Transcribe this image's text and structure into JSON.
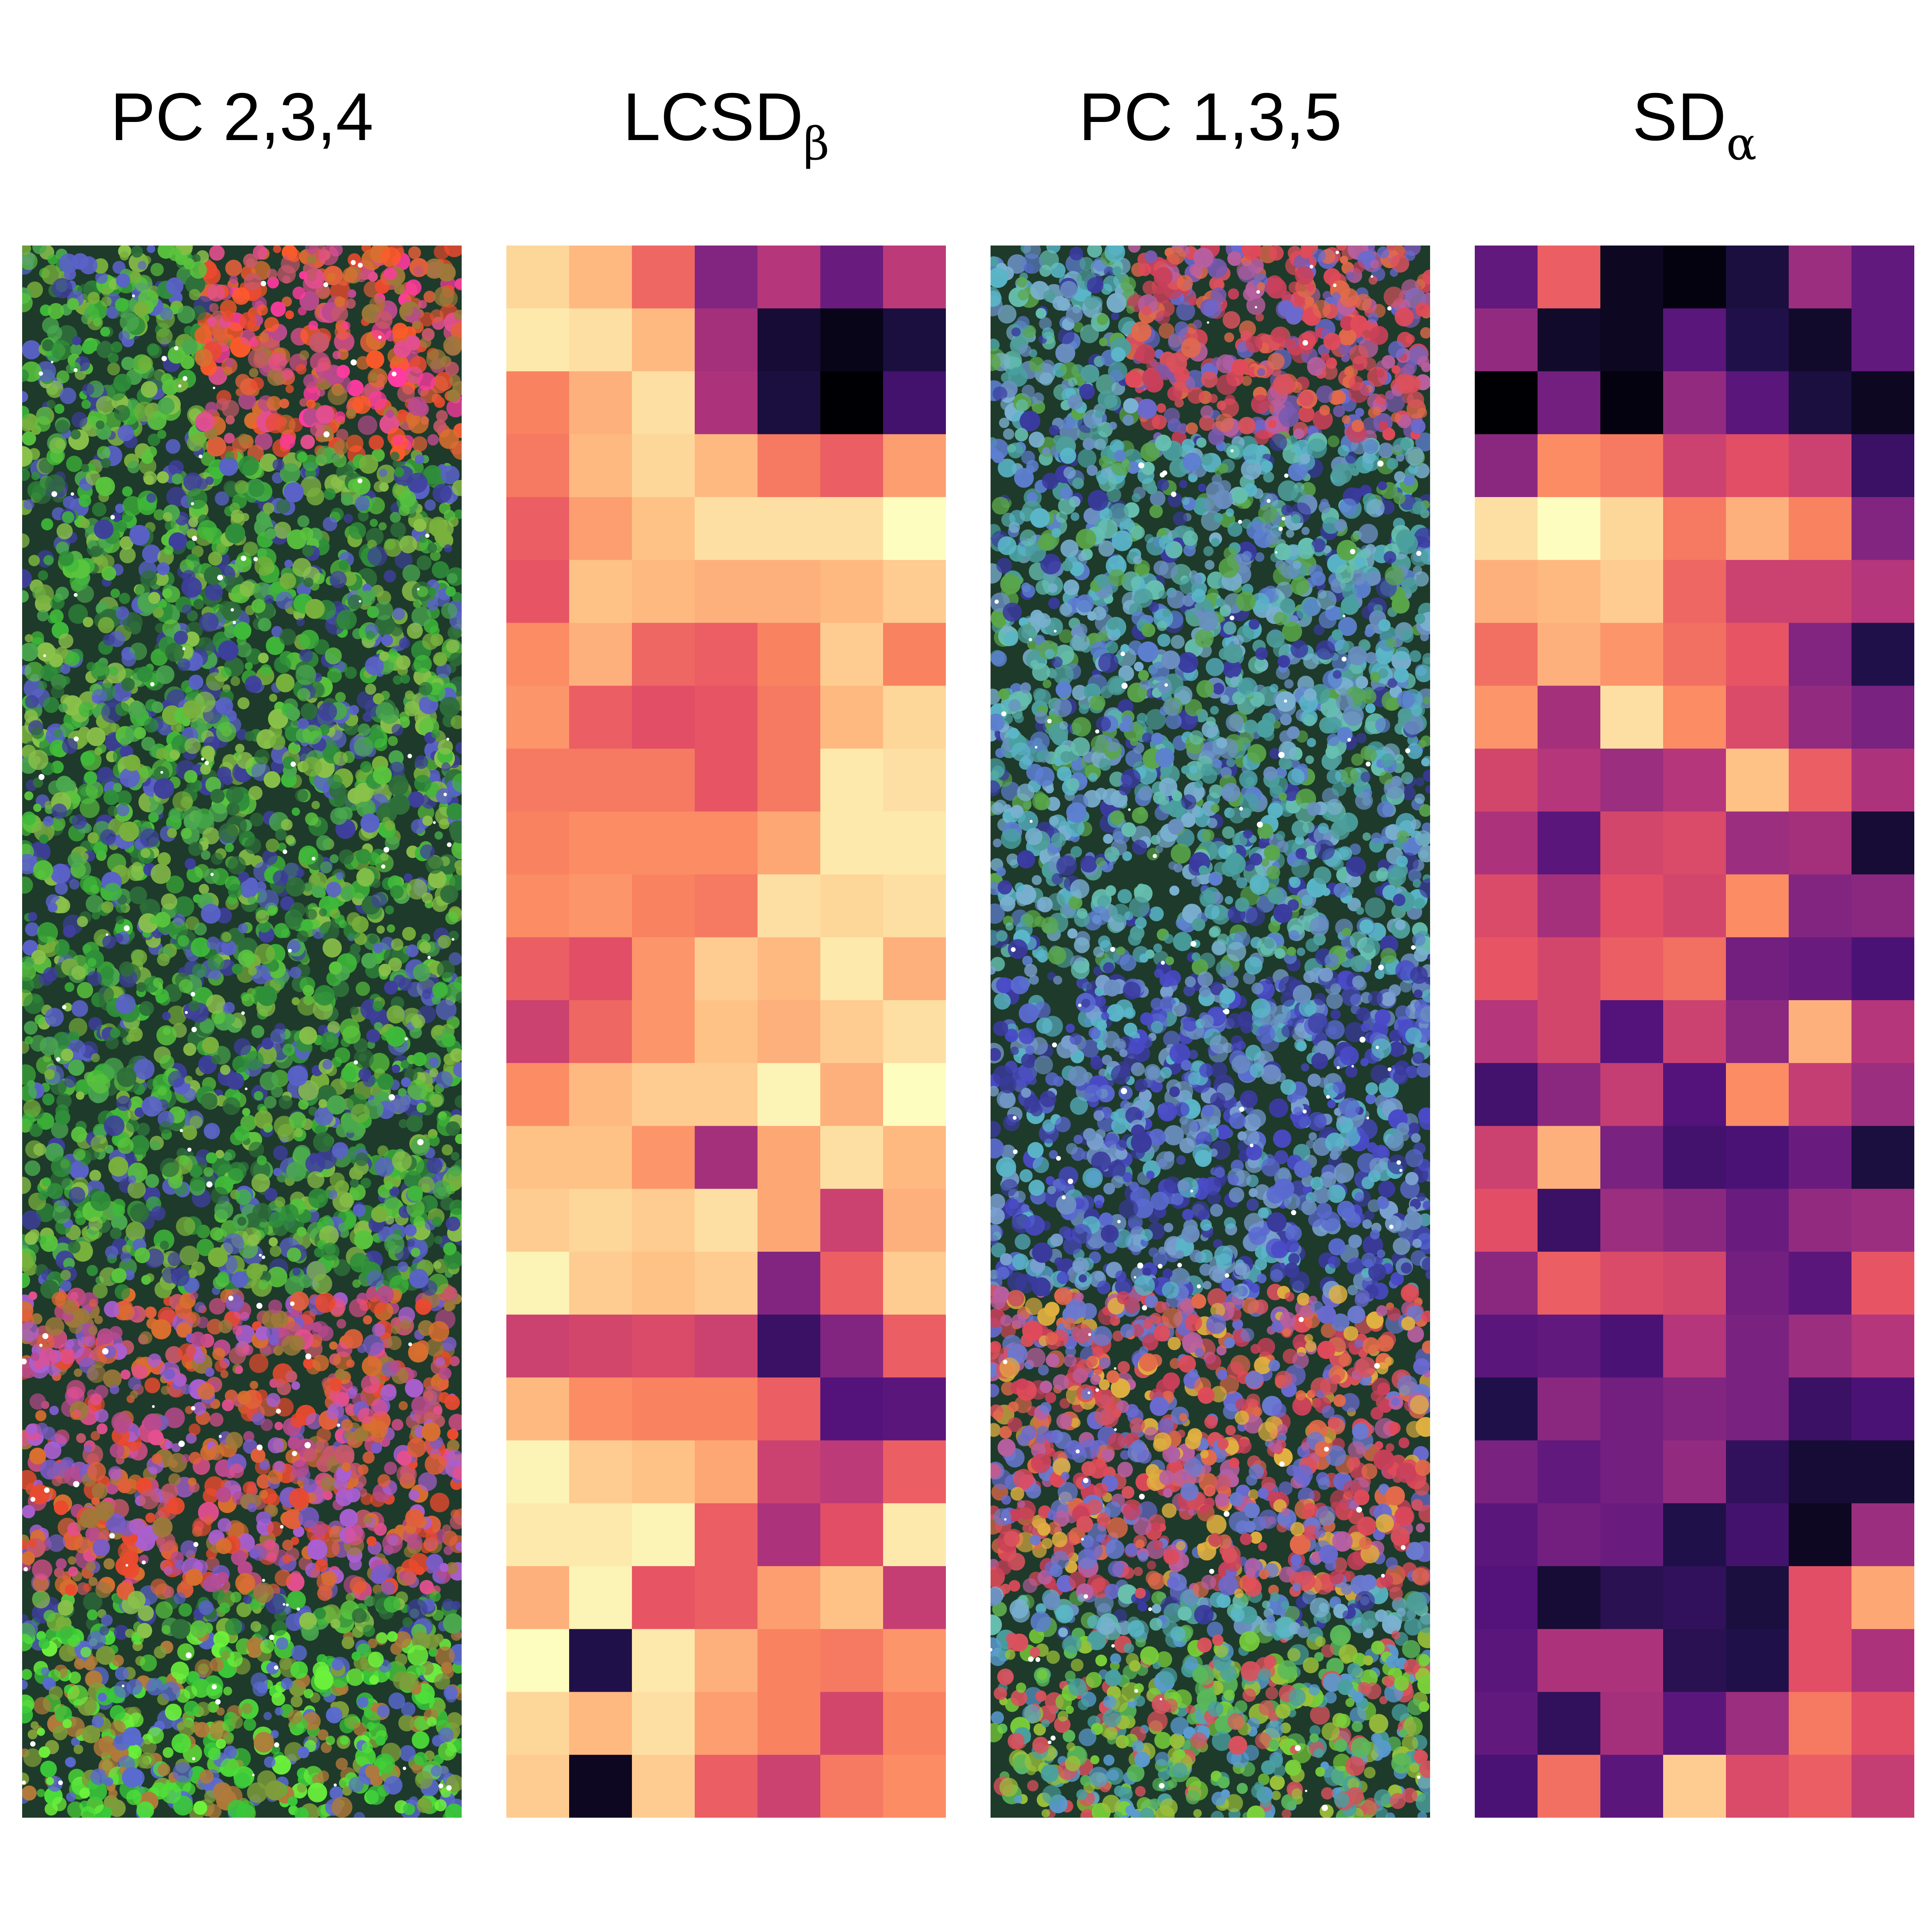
{
  "panels": [
    {
      "id": "pc234",
      "label": "PC 2,3,4",
      "sub": "",
      "type": "rgb-composite",
      "tint": [
        "#3fb93a",
        "#6e9c3a",
        "#e06a3a",
        "#c9588f",
        "#6c6bd0",
        "#2d8d5d"
      ]
    },
    {
      "id": "lcsd",
      "label": "LCSD",
      "sub": "β",
      "type": "grid",
      "colormap": "magma"
    },
    {
      "id": "pc135",
      "label": "PC 1,3,5",
      "sub": "",
      "type": "rgb-composite",
      "tint": [
        "#5aa6b6",
        "#4e8d8f",
        "#6d6cd0",
        "#d9525d",
        "#7aa74a",
        "#8a8fb0"
      ]
    },
    {
      "id": "sd",
      "label": "SD",
      "sub": "α",
      "type": "grid",
      "colormap": "magma"
    }
  ],
  "grids": {
    "lcsd": [
      [
        0.92,
        0.86,
        0.68,
        0.38,
        0.5,
        0.32,
        0.52
      ],
      [
        0.96,
        0.94,
        0.86,
        0.46,
        0.1,
        0.04,
        0.12
      ],
      [
        0.74,
        0.84,
        0.94,
        0.48,
        0.12,
        0.0,
        0.22
      ],
      [
        0.72,
        0.86,
        0.92,
        0.86,
        0.72,
        0.66,
        0.8
      ],
      [
        0.66,
        0.8,
        0.88,
        0.94,
        0.94,
        0.94,
        1.0
      ],
      [
        0.64,
        0.88,
        0.86,
        0.84,
        0.84,
        0.86,
        0.9
      ],
      [
        0.76,
        0.84,
        0.68,
        0.66,
        0.74,
        0.9,
        0.74
      ],
      [
        0.78,
        0.66,
        0.62,
        0.64,
        0.72,
        0.86,
        0.92
      ],
      [
        0.72,
        0.72,
        0.72,
        0.64,
        0.72,
        0.96,
        0.94
      ],
      [
        0.74,
        0.76,
        0.76,
        0.76,
        0.82,
        0.96,
        0.96
      ],
      [
        0.76,
        0.78,
        0.74,
        0.72,
        0.94,
        0.92,
        0.94
      ],
      [
        0.66,
        0.62,
        0.78,
        0.9,
        0.86,
        0.96,
        0.84
      ],
      [
        0.56,
        0.68,
        0.78,
        0.88,
        0.84,
        0.9,
        0.94
      ],
      [
        0.76,
        0.86,
        0.9,
        0.9,
        0.98,
        0.84,
        1.0
      ],
      [
        0.88,
        0.88,
        0.78,
        0.46,
        0.82,
        0.94,
        0.86
      ],
      [
        0.9,
        0.92,
        0.9,
        0.94,
        0.82,
        0.56,
        0.84
      ],
      [
        0.98,
        0.9,
        0.88,
        0.9,
        0.38,
        0.66,
        0.9
      ],
      [
        0.56,
        0.58,
        0.6,
        0.56,
        0.2,
        0.38,
        0.66
      ],
      [
        0.86,
        0.76,
        0.74,
        0.74,
        0.66,
        0.26,
        0.28
      ],
      [
        0.98,
        0.9,
        0.88,
        0.82,
        0.56,
        0.52,
        0.66
      ],
      [
        0.96,
        0.96,
        0.98,
        0.66,
        0.48,
        0.62,
        0.96
      ],
      [
        0.84,
        0.98,
        0.64,
        0.66,
        0.8,
        0.88,
        0.54
      ],
      [
        1.0,
        0.14,
        0.96,
        0.84,
        0.74,
        0.72,
        0.78
      ],
      [
        0.92,
        0.86,
        0.94,
        0.8,
        0.74,
        0.58,
        0.74
      ],
      [
        0.9,
        0.06,
        0.9,
        0.66,
        0.56,
        0.72,
        0.76
      ]
    ],
    "sd": [
      [
        0.3,
        0.66,
        0.06,
        0.02,
        0.12,
        0.44,
        0.3
      ],
      [
        0.42,
        0.08,
        0.06,
        0.28,
        0.14,
        0.08,
        0.3
      ],
      [
        0.0,
        0.34,
        0.02,
        0.42,
        0.28,
        0.12,
        0.06
      ],
      [
        0.4,
        0.76,
        0.72,
        0.56,
        0.62,
        0.56,
        0.2
      ],
      [
        0.94,
        1.0,
        0.92,
        0.72,
        0.84,
        0.74,
        0.38
      ],
      [
        0.84,
        0.86,
        0.9,
        0.68,
        0.56,
        0.56,
        0.5
      ],
      [
        0.7,
        0.84,
        0.78,
        0.7,
        0.64,
        0.38,
        0.14
      ],
      [
        0.78,
        0.46,
        0.94,
        0.76,
        0.6,
        0.42,
        0.36
      ],
      [
        0.58,
        0.5,
        0.44,
        0.5,
        0.88,
        0.66,
        0.48
      ],
      [
        0.48,
        0.28,
        0.58,
        0.6,
        0.44,
        0.46,
        0.1
      ],
      [
        0.6,
        0.46,
        0.62,
        0.58,
        0.76,
        0.38,
        0.4
      ],
      [
        0.64,
        0.58,
        0.66,
        0.7,
        0.34,
        0.32,
        0.24
      ],
      [
        0.5,
        0.58,
        0.26,
        0.56,
        0.4,
        0.84,
        0.5
      ],
      [
        0.22,
        0.4,
        0.54,
        0.26,
        0.76,
        0.54,
        0.44
      ],
      [
        0.56,
        0.84,
        0.36,
        0.22,
        0.24,
        0.32,
        0.12
      ],
      [
        0.62,
        0.2,
        0.44,
        0.4,
        0.32,
        0.42,
        0.44
      ],
      [
        0.4,
        0.66,
        0.6,
        0.58,
        0.34,
        0.28,
        0.64
      ],
      [
        0.28,
        0.3,
        0.24,
        0.5,
        0.36,
        0.44,
        0.5
      ],
      [
        0.14,
        0.4,
        0.34,
        0.38,
        0.36,
        0.2,
        0.24
      ],
      [
        0.36,
        0.3,
        0.34,
        0.42,
        0.18,
        0.1,
        0.1
      ],
      [
        0.28,
        0.34,
        0.32,
        0.14,
        0.22,
        0.06,
        0.44
      ],
      [
        0.26,
        0.1,
        0.16,
        0.18,
        0.12,
        0.62,
        0.82
      ],
      [
        0.28,
        0.48,
        0.48,
        0.16,
        0.14,
        0.62,
        0.48
      ],
      [
        0.3,
        0.18,
        0.46,
        0.28,
        0.44,
        0.72,
        0.62
      ],
      [
        0.24,
        0.7,
        0.28,
        0.9,
        0.6,
        0.66,
        0.54
      ]
    ]
  }
}
